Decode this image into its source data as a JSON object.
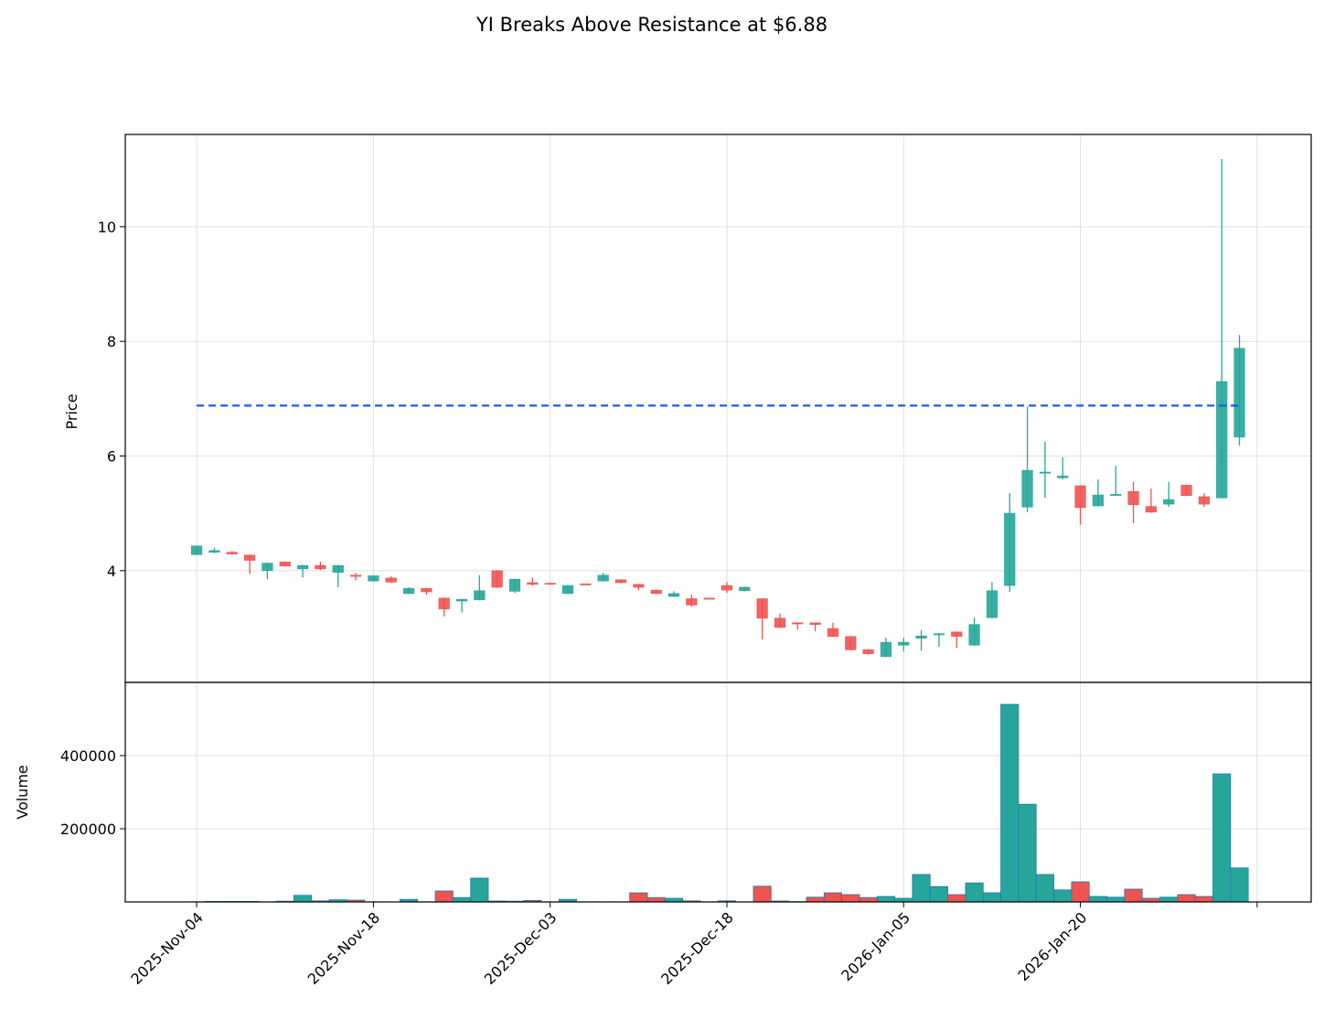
{
  "chart_data": {
    "type": "candlestick",
    "title": "YI Breaks Above Resistance at $6.88",
    "ylabel": "Price",
    "volume_ylabel": "Volume",
    "categories": [
      "2025-Nov-04",
      null,
      null,
      null,
      null,
      null,
      null,
      null,
      null,
      null,
      "2025-Nov-18",
      null,
      null,
      null,
      null,
      null,
      null,
      null,
      null,
      null,
      "2025-Dec-03",
      null,
      null,
      null,
      null,
      null,
      null,
      null,
      null,
      null,
      "2025-Dec-18",
      null,
      null,
      null,
      null,
      null,
      null,
      null,
      null,
      null,
      "2026-Jan-05",
      null,
      null,
      null,
      null,
      null,
      null,
      null,
      null,
      null,
      "2026-Jan-20",
      null,
      null,
      null,
      null,
      null,
      null,
      null,
      null,
      null
    ],
    "xticks": [
      0,
      10,
      20,
      30,
      40,
      50,
      60
    ],
    "xlim": [
      -4.04,
      63.06
    ],
    "open": [
      4.28,
      4.32,
      4.32,
      4.27,
      4.0,
      4.15,
      4.03,
      4.09,
      3.97,
      3.92,
      3.82,
      3.87,
      3.6,
      3.69,
      3.52,
      3.47,
      3.49,
      4.0,
      3.64,
      3.79,
      3.78,
      3.6,
      3.77,
      3.82,
      3.84,
      3.76,
      3.66,
      3.55,
      3.51,
      3.52,
      3.74,
      3.65,
      3.51,
      3.17,
      3.09,
      3.09,
      2.99,
      2.85,
      2.62,
      2.5,
      2.7,
      2.82,
      2.88,
      2.93,
      2.7,
      3.18,
      3.74,
      5.11,
      5.7,
      5.62,
      5.48,
      5.13,
      5.31,
      5.38,
      5.12,
      5.16,
      5.49,
      5.29,
      5.27,
      6.33
    ],
    "high": [
      4.44,
      4.4,
      4.34,
      4.28,
      4.14,
      4.16,
      4.1,
      4.16,
      4.1,
      3.96,
      3.92,
      3.9,
      3.71,
      3.7,
      3.53,
      3.51,
      3.92,
      4.01,
      3.86,
      3.88,
      3.79,
      3.75,
      3.77,
      3.96,
      3.85,
      3.77,
      3.67,
      3.64,
      3.58,
      3.52,
      3.8,
      3.72,
      3.52,
      3.25,
      3.1,
      3.09,
      3.09,
      2.86,
      2.63,
      2.83,
      2.83,
      2.96,
      2.91,
      2.94,
      3.18,
      3.8,
      5.35,
      6.86,
      6.25,
      5.98,
      5.49,
      5.59,
      5.83,
      5.55,
      5.43,
      5.55,
      5.5,
      5.35,
      11.18,
      8.11
    ],
    "low": [
      4.27,
      4.31,
      4.28,
      3.94,
      3.85,
      4.07,
      3.88,
      4.01,
      3.71,
      3.83,
      3.81,
      3.79,
      3.59,
      3.58,
      3.2,
      3.27,
      3.48,
      3.7,
      3.61,
      3.74,
      3.76,
      3.59,
      3.75,
      3.81,
      3.78,
      3.66,
      3.59,
      3.54,
      3.37,
      3.5,
      3.61,
      3.64,
      2.8,
      3.0,
      2.97,
      2.94,
      2.84,
      2.61,
      2.53,
      2.49,
      2.59,
      2.6,
      2.67,
      2.65,
      2.69,
      3.17,
      3.63,
      5.02,
      5.27,
      5.59,
      4.8,
      5.12,
      5.31,
      4.83,
      5.01,
      5.11,
      5.3,
      5.11,
      5.27,
      6.18
    ],
    "close": [
      4.43,
      4.35,
      4.29,
      4.18,
      4.13,
      4.08,
      4.09,
      4.03,
      4.09,
      3.9,
      3.91,
      3.8,
      3.69,
      3.63,
      3.33,
      3.5,
      3.65,
      3.71,
      3.85,
      3.76,
      3.77,
      3.74,
      3.76,
      3.92,
      3.79,
      3.71,
      3.6,
      3.6,
      3.4,
      3.51,
      3.66,
      3.71,
      3.17,
      3.01,
      3.07,
      3.06,
      2.85,
      2.62,
      2.55,
      2.75,
      2.75,
      2.86,
      2.9,
      2.85,
      3.06,
      3.65,
      5.0,
      5.75,
      5.72,
      5.65,
      5.1,
      5.32,
      5.33,
      5.15,
      5.02,
      5.24,
      5.31,
      5.16,
      7.3,
      7.88
    ],
    "volume": [
      500,
      1500,
      1500,
      1500,
      500,
      2000,
      18000,
      3000,
      6000,
      5000,
      500,
      300,
      7000,
      500,
      30000,
      12000,
      65000,
      2500,
      2000,
      4000,
      500,
      7000,
      500,
      500,
      500,
      25000,
      12000,
      10000,
      3000,
      500,
      3000,
      500,
      43000,
      2500,
      1000,
      13000,
      25000,
      20000,
      12000,
      15000,
      10000,
      75000,
      42000,
      20000,
      52000,
      25000,
      540000,
      267000,
      75000,
      33000,
      55000,
      15000,
      13000,
      35000,
      10000,
      13000,
      20000,
      15000,
      350000,
      93000
    ],
    "ylim": [
      2.05,
      11.61
    ],
    "yticks": [
      4,
      6,
      8,
      10
    ],
    "volume_ylim": [
      0,
      600000
    ],
    "volume_yticks": [
      200000,
      400000
    ],
    "up_color": "#26a69a",
    "down_color": "#ef5350",
    "volume_edge_color": "#1f77b4",
    "resistance": 6.88,
    "resistance_color": "#2255ff",
    "grid": true
  }
}
